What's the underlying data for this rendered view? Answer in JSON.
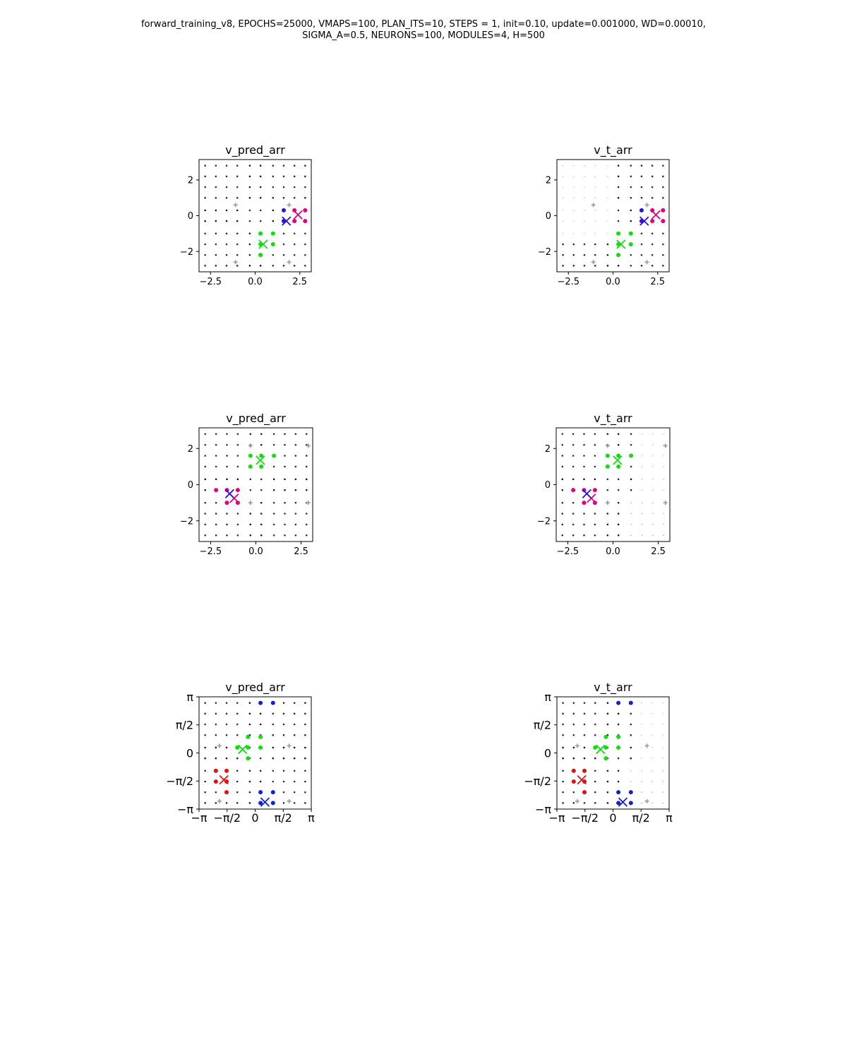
{
  "suptitle": {
    "line1": "forward_training_v8, EPOCHS=25000, VMAPS=100, PLAN_ITS=10, STEPS = 1, init=0.10, update=0.001000, WD=0.00010,",
    "line2": "SIGMA_A=0.5, NEURONS=100, MODULES=4, H=500"
  },
  "chart_data": [
    {
      "type": "scatter",
      "title": "v_pred_arr",
      "xlim": [
        -3.14159,
        3.14159
      ],
      "ylim": [
        -3.14159,
        3.14159
      ],
      "xticks": [
        -2.5,
        0.0,
        2.5
      ],
      "xtick_labels": [
        "−2.5",
        "0.0",
        "2.5"
      ],
      "yticks": [
        2,
        0,
        -2
      ],
      "ytick_labels": [
        "2",
        "0",
        "−2"
      ],
      "grid_points": {
        "x": [
          -2.8,
          -2.2,
          -1.6,
          -1.0,
          -0.3,
          0.3,
          1.0,
          1.6,
          2.2,
          2.8
        ],
        "y": [
          -2.8,
          -2.2,
          -1.6,
          -1.0,
          -0.3,
          0.3,
          1.0,
          1.6,
          2.2,
          2.8
        ]
      },
      "background": "full",
      "series": [
        {
          "color": "#e0007a",
          "center": [
            2.4,
            0.05
          ],
          "points": [
            [
              2.2,
              0.3
            ],
            [
              2.8,
              0.3
            ],
            [
              2.2,
              -0.3
            ],
            [
              2.8,
              -0.3
            ]
          ]
        },
        {
          "color": "#3311dd",
          "center": [
            1.75,
            -0.3
          ],
          "points": [
            [
              1.6,
              0.3
            ],
            [
              1.6,
              -0.3
            ]
          ]
        },
        {
          "color": "#11dd11",
          "center": [
            0.45,
            -1.6
          ],
          "points": [
            [
              0.3,
              -1.0
            ],
            [
              1.0,
              -1.0
            ],
            [
              0.3,
              -1.6
            ],
            [
              1.0,
              -1.6
            ],
            [
              0.3,
              -2.2
            ]
          ]
        }
      ],
      "plus_markers": [
        [
          -1.1,
          0.6
        ],
        [
          1.9,
          0.6
        ],
        [
          -1.1,
          -2.6
        ],
        [
          1.9,
          -2.6
        ]
      ]
    },
    {
      "type": "scatter",
      "title": "v_t_arr",
      "xlim": [
        -3.14159,
        3.14159
      ],
      "ylim": [
        -3.14159,
        3.14159
      ],
      "xticks": [
        -2.5,
        0.0,
        2.5
      ],
      "xtick_labels": [
        "−2.5",
        "0.0",
        "2.5"
      ],
      "yticks": [
        2,
        0,
        -2
      ],
      "ytick_labels": [
        "2",
        "0",
        "−2"
      ],
      "grid_points": {
        "x": [
          -2.8,
          -2.2,
          -1.6,
          -1.0,
          -0.3,
          0.3,
          1.0,
          1.6,
          2.2,
          2.8
        ],
        "y": [
          -2.8,
          -2.2,
          -1.6,
          -1.0,
          -0.3,
          0.3,
          1.0,
          1.6,
          2.2,
          2.8
        ]
      },
      "background": "faded-left",
      "series": [
        {
          "color": "#e0007a",
          "center": [
            2.4,
            0.05
          ],
          "points": [
            [
              2.2,
              0.3
            ],
            [
              2.8,
              0.3
            ],
            [
              2.2,
              -0.3
            ],
            [
              2.8,
              -0.3
            ]
          ]
        },
        {
          "color": "#3311dd",
          "center": [
            1.75,
            -0.3
          ],
          "points": [
            [
              1.6,
              0.3
            ],
            [
              1.6,
              -0.3
            ]
          ]
        },
        {
          "color": "#11dd11",
          "center": [
            0.45,
            -1.6
          ],
          "points": [
            [
              0.3,
              -1.0
            ],
            [
              1.0,
              -1.0
            ],
            [
              0.3,
              -1.6
            ],
            [
              1.0,
              -1.6
            ],
            [
              0.3,
              -2.2
            ]
          ]
        }
      ],
      "plus_markers": [
        [
          -1.1,
          0.6
        ],
        [
          1.9,
          0.6
        ],
        [
          -1.1,
          -2.6
        ],
        [
          1.9,
          -2.6
        ]
      ]
    },
    {
      "type": "scatter",
      "title": "v_pred_arr",
      "xlim": [
        -3.14159,
        3.14159
      ],
      "ylim": [
        -3.14159,
        3.14159
      ],
      "xticks": [
        -2.5,
        0.0,
        2.5
      ],
      "xtick_labels": [
        "−2.5",
        "0.0",
        "2.5"
      ],
      "yticks": [
        2,
        0,
        -2
      ],
      "ytick_labels": [
        "2",
        "0",
        "−2"
      ],
      "grid_points": {
        "x": [
          -2.8,
          -2.2,
          -1.6,
          -1.0,
          -0.3,
          0.3,
          1.0,
          1.6,
          2.2,
          2.8
        ],
        "y": [
          -2.8,
          -2.2,
          -1.6,
          -1.0,
          -0.3,
          0.3,
          1.0,
          1.6,
          2.2,
          2.8
        ]
      },
      "background": "full",
      "series": [
        {
          "color": "#11dd11",
          "center": [
            0.25,
            1.35
          ],
          "points": [
            [
              -0.3,
              1.6
            ],
            [
              0.3,
              1.6
            ],
            [
              -0.3,
              1.0
            ],
            [
              0.3,
              1.0
            ],
            [
              1.0,
              1.6
            ]
          ]
        },
        {
          "color": "#e0007a",
          "center": [
            -1.2,
            -0.75
          ],
          "points": [
            [
              -1.6,
              -0.3
            ],
            [
              -1.0,
              -0.3
            ],
            [
              -1.6,
              -1.0
            ],
            [
              -1.0,
              -1.0
            ],
            [
              -2.2,
              -0.3
            ]
          ]
        },
        {
          "color": "#3311dd",
          "center": [
            -1.45,
            -0.5
          ],
          "points": []
        }
      ],
      "plus_markers": [
        [
          -0.3,
          2.15
        ],
        [
          2.9,
          2.15
        ],
        [
          -0.3,
          -1.0
        ],
        [
          2.9,
          -1.0
        ]
      ]
    },
    {
      "type": "scatter",
      "title": "v_t_arr",
      "xlim": [
        -3.14159,
        3.14159
      ],
      "ylim": [
        -3.14159,
        3.14159
      ],
      "xticks": [
        -2.5,
        0.0,
        2.5
      ],
      "xtick_labels": [
        "−2.5",
        "0.0",
        "2.5"
      ],
      "yticks": [
        2,
        0,
        -2
      ],
      "ytick_labels": [
        "2",
        "0",
        "−2"
      ],
      "grid_points": {
        "x": [
          -2.8,
          -2.2,
          -1.6,
          -1.0,
          -0.3,
          0.3,
          1.0,
          1.6,
          2.2,
          2.8
        ],
        "y": [
          -2.8,
          -2.2,
          -1.6,
          -1.0,
          -0.3,
          0.3,
          1.0,
          1.6,
          2.2,
          2.8
        ]
      },
      "background": "faded-right",
      "series": [
        {
          "color": "#11dd11",
          "center": [
            0.25,
            1.35
          ],
          "points": [
            [
              -0.3,
              1.6
            ],
            [
              0.3,
              1.6
            ],
            [
              -0.3,
              1.0
            ],
            [
              0.3,
              1.0
            ],
            [
              1.0,
              1.6
            ]
          ]
        },
        {
          "color": "#e0007a",
          "center": [
            -1.2,
            -0.75
          ],
          "points": [
            [
              -1.6,
              -0.3
            ],
            [
              -1.0,
              -0.3
            ],
            [
              -1.6,
              -1.0
            ],
            [
              -1.0,
              -1.0
            ],
            [
              -2.2,
              -0.3
            ]
          ]
        },
        {
          "color": "#3311dd",
          "center": [
            -1.45,
            -0.5
          ],
          "points": []
        }
      ],
      "plus_markers": [
        [
          -0.3,
          2.15
        ],
        [
          2.9,
          2.15
        ],
        [
          -0.3,
          -1.0
        ],
        [
          2.9,
          -1.0
        ]
      ]
    },
    {
      "type": "scatter",
      "title": "v_pred_arr",
      "xlim": [
        -3.14159,
        3.14159
      ],
      "ylim": [
        -3.14159,
        3.14159
      ],
      "xticks": [
        -3.14159,
        -1.5708,
        0,
        1.5708,
        3.14159
      ],
      "xtick_labels": [
        "−π",
        "−π/2",
        "0",
        "π/2",
        "π"
      ],
      "yticks": [
        3.14159,
        1.5708,
        0,
        -1.5708,
        -3.14159
      ],
      "ytick_labels": [
        "π",
        "π/2",
        "0",
        "−π/2",
        "−π"
      ],
      "grid_points": {
        "x": [
          -2.8,
          -2.2,
          -1.6,
          -1.0,
          -0.3,
          0.3,
          1.0,
          1.6,
          2.2,
          2.8
        ],
        "y": [
          -2.8,
          -2.2,
          -1.6,
          -1.0,
          -0.3,
          0.3,
          1.0,
          1.6,
          2.2,
          2.8
        ]
      },
      "background": "full",
      "series": [
        {
          "color": "#11dd11",
          "center": [
            -0.7,
            0.2
          ],
          "points": [
            [
              -1.0,
              0.3
            ],
            [
              -0.4,
              0.3
            ],
            [
              -0.4,
              0.9
            ],
            [
              0.3,
              0.9
            ],
            [
              0.3,
              0.3
            ],
            [
              -0.4,
              -0.3
            ]
          ]
        },
        {
          "color": "#dd1111",
          "center": [
            -1.75,
            -1.5
          ],
          "points": [
            [
              -2.2,
              -1.0
            ],
            [
              -1.6,
              -1.0
            ],
            [
              -2.2,
              -1.6
            ],
            [
              -1.6,
              -1.6
            ],
            [
              -1.6,
              -2.2
            ]
          ]
        },
        {
          "color": "#1122cc",
          "center": [
            0.55,
            -2.75
          ],
          "points": [
            [
              0.3,
              -2.2
            ],
            [
              1.0,
              -2.2
            ],
            [
              0.3,
              -2.8
            ],
            [
              1.0,
              -2.8
            ],
            [
              0.3,
              2.8
            ],
            [
              1.0,
              2.8
            ]
          ]
        }
      ],
      "plus_markers": [
        [
          -2.0,
          0.4
        ],
        [
          1.9,
          0.4
        ],
        [
          -2.0,
          -2.7
        ],
        [
          1.9,
          -2.7
        ]
      ]
    },
    {
      "type": "scatter",
      "title": "v_t_arr",
      "xlim": [
        -3.14159,
        3.14159
      ],
      "ylim": [
        -3.14159,
        3.14159
      ],
      "xticks": [
        -3.14159,
        -1.5708,
        0,
        1.5708,
        3.14159
      ],
      "xtick_labels": [
        "−π",
        "−π/2",
        "0",
        "π/2",
        "π"
      ],
      "yticks": [
        3.14159,
        1.5708,
        0,
        -1.5708,
        -3.14159
      ],
      "ytick_labels": [
        "π",
        "π/2",
        "0",
        "−π/2",
        "−π"
      ],
      "grid_points": {
        "x": [
          -2.8,
          -2.2,
          -1.6,
          -1.0,
          -0.3,
          0.3,
          1.0,
          1.6,
          2.2,
          2.8
        ],
        "y": [
          -2.8,
          -2.2,
          -1.6,
          -1.0,
          -0.3,
          0.3,
          1.0,
          1.6,
          2.2,
          2.8
        ]
      },
      "background": "faded-right",
      "series": [
        {
          "color": "#11dd11",
          "center": [
            -0.7,
            0.2
          ],
          "points": [
            [
              -1.0,
              0.3
            ],
            [
              -0.4,
              0.3
            ],
            [
              -0.4,
              0.9
            ],
            [
              0.3,
              0.9
            ],
            [
              0.3,
              0.3
            ],
            [
              -0.4,
              -0.3
            ]
          ]
        },
        {
          "color": "#dd1111",
          "center": [
            -1.75,
            -1.5
          ],
          "points": [
            [
              -2.2,
              -1.0
            ],
            [
              -1.6,
              -1.0
            ],
            [
              -2.2,
              -1.6
            ],
            [
              -1.6,
              -1.6
            ],
            [
              -1.6,
              -2.2
            ]
          ]
        },
        {
          "color": "#1122cc",
          "center": [
            0.55,
            -2.75
          ],
          "points": [
            [
              0.3,
              -2.2
            ],
            [
              1.0,
              -2.2
            ],
            [
              0.3,
              -2.8
            ],
            [
              1.0,
              -2.8
            ],
            [
              0.3,
              2.8
            ],
            [
              1.0,
              2.8
            ]
          ]
        }
      ],
      "plus_markers": [
        [
          -2.0,
          0.4
        ],
        [
          1.9,
          0.4
        ],
        [
          -2.0,
          -2.7
        ],
        [
          1.9,
          -2.7
        ]
      ]
    }
  ]
}
